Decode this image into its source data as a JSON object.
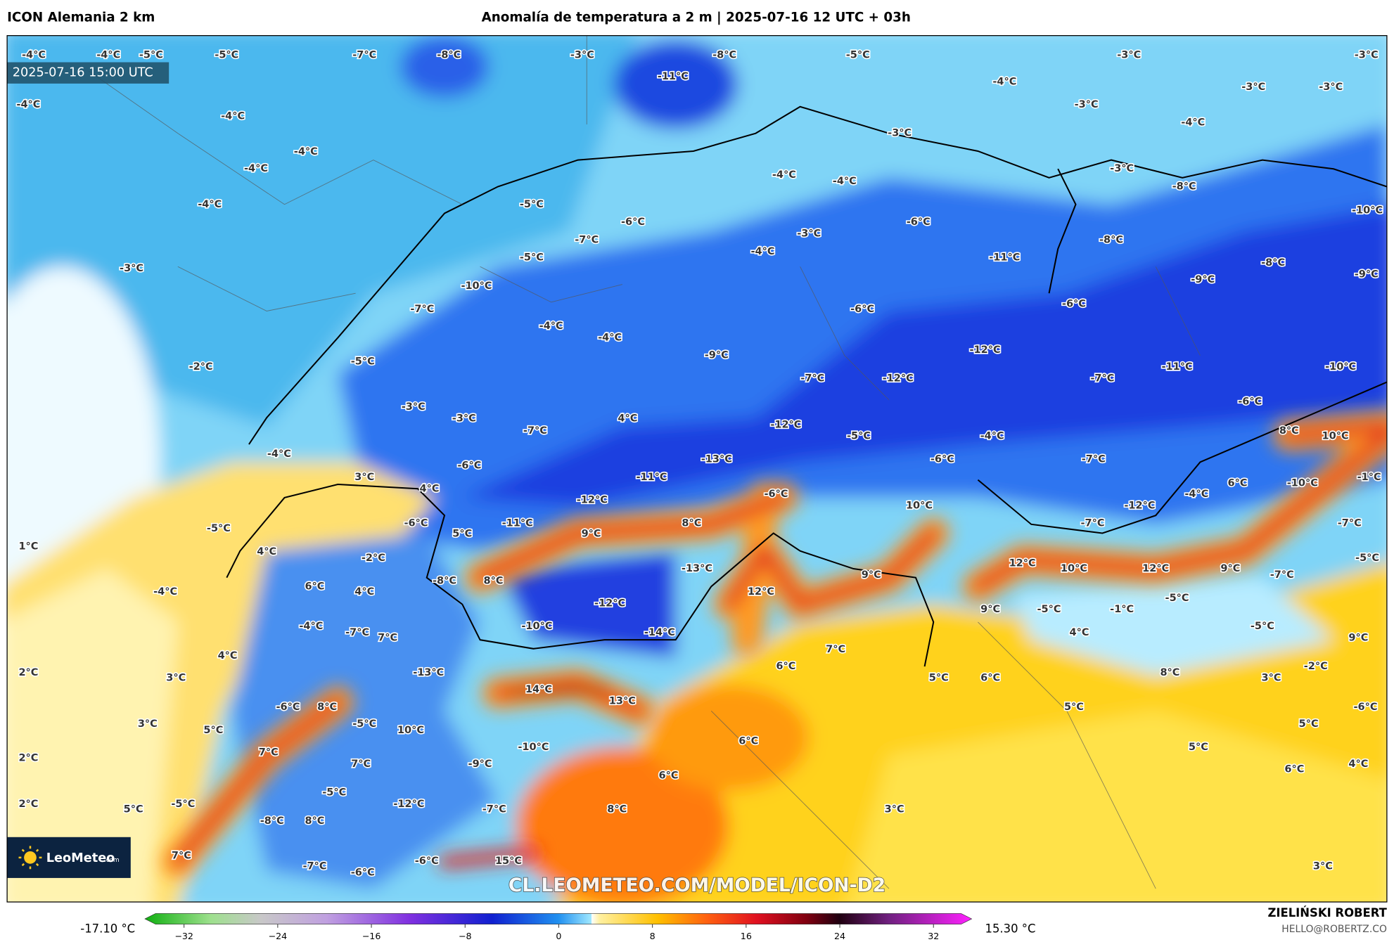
{
  "header": {
    "model": "ICON Alemania 2 km",
    "title": "Anomalía de temperatura a 2 m | 2025-07-16 12 UTC + 03h"
  },
  "map": {
    "timestamp": "2025-07-16 15:00 UTC",
    "watermark": "CL.LEOMETEO.COM/MODEL/ICON-D2",
    "logo": {
      "name": "LeoMeteo",
      "suffix": ".com"
    },
    "labels": [
      "-4°C",
      "-4°C",
      "-5°C",
      "-5°C",
      "-7°C",
      "-8°C",
      "-3°C",
      "-8°C",
      "-11°C",
      "-5°C",
      "-3°C",
      "-3°C",
      "-4°C",
      "-3°C",
      "-3°C",
      "-4°C",
      "-4°C",
      "-3°C",
      "-4°C",
      "-4°C",
      "-4°C",
      "-3°C",
      "-4°C",
      "-4°C",
      "-3°C",
      "-8°C",
      "-4°C",
      "-5°C",
      "-6°C",
      "-6°C",
      "-10°C",
      "-7°C",
      "-3°C",
      "-4°C",
      "-8°C",
      "-5°C",
      "-11°C",
      "-8°C",
      "-3°C",
      "-10°C",
      "-9°C",
      "-9°C",
      "-7°C",
      "-6°C",
      "-6°C",
      "-4°C",
      "-4°C",
      "-12°C",
      "-5°C",
      "-9°C",
      "-2°C",
      "-11°C",
      "-10°C",
      "-7°C",
      "-12°C",
      "-7°C",
      "-3°C",
      "-3°C",
      "-6°C",
      "4°C",
      "-12°C",
      "-7°C",
      "-5°C",
      "-4°C",
      "8°C",
      "10°C",
      "-4°C",
      "-13°C",
      "-6°C",
      "-7°C",
      "-6°C",
      "-11°C",
      "3°C",
      "4°C",
      "6°C",
      "-10°C",
      "-1°C",
      "-6°C",
      "-4°C",
      "-12°C",
      "10°C",
      "-12°C",
      "-6°C",
      "-11°C",
      "8°C",
      "-7°C",
      "-7°C",
      "-5°C",
      "5°C",
      "9°C",
      "1°C",
      "4°C",
      "-2°C",
      "12°C",
      "10°C",
      "12°C",
      "-13°C",
      "9°C",
      "-5°C",
      "-8°C",
      "8°C",
      "6°C",
      "9°C",
      "-7°C",
      "12°C",
      "4°C",
      "-4°C",
      "-12°C",
      "-5°C",
      "9°C",
      "-1°C",
      "-5°C",
      "-4°C",
      "-10°C",
      "-14°C",
      "4°C",
      "-5°C",
      "-7°C",
      "7°C",
      "9°C",
      "4°C",
      "7°C",
      "6°C",
      "-2°C",
      "2°C",
      "-13°C",
      "5°C",
      "6°C",
      "8°C",
      "3°C",
      "3°C",
      "14°C",
      "13°C",
      "-6°C",
      "8°C",
      "5°C",
      "-6°C",
      "3°C",
      "-5°C",
      "5°C",
      "10°C",
      "5°C",
      "6°C",
      "-10°C",
      "5°C",
      "7°C",
      "2°C",
      "-9°C",
      "7°C",
      "4°C",
      "6°C",
      "6°C",
      "-5°C",
      "5°C",
      "-5°C",
      "-12°C",
      "-7°C",
      "8°C",
      "3°C",
      "2°C",
      "-8°C",
      "8°C",
      "7°C",
      "15°C",
      "-6°C",
      "-7°C",
      "-6°C",
      "3°C"
    ]
  },
  "colorbar": {
    "min_label": "-17.10 °C",
    "max_label": "15.30 °C",
    "ticks": [
      {
        "value": -32,
        "label": "−32"
      },
      {
        "value": -24,
        "label": "−24"
      },
      {
        "value": -16,
        "label": "−16"
      },
      {
        "value": -8,
        "label": "−8"
      },
      0,
      8,
      16,
      24,
      32
    ]
  },
  "credits": {
    "author": "ZIELIŃSKI ROBERT",
    "contact": "HELLO@ROBERTZ.CO"
  }
}
